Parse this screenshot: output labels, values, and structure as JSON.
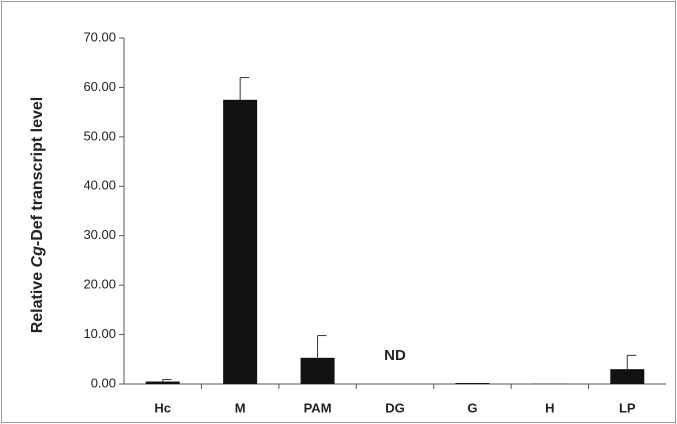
{
  "chart_data": {
    "type": "bar",
    "ylabel": [
      "Relative ",
      "Cg",
      "-Def transcript level"
    ],
    "categories": [
      "Hc",
      "M",
      "PAM",
      "DG",
      "G",
      "H",
      "LP"
    ],
    "values": [
      0.5,
      57.5,
      5.3,
      null,
      0.2,
      0.05,
      3.0
    ],
    "errors": [
      0.4,
      4.5,
      4.5,
      null,
      0,
      0,
      2.8
    ],
    "color": "#111111",
    "annotations": [
      {
        "text": "ND",
        "category": "DG"
      }
    ],
    "ylim": [
      0,
      70
    ],
    "yticks": [
      {
        "value": 0,
        "label": "0.00"
      },
      {
        "value": 10,
        "label": "10.00"
      },
      {
        "value": 20,
        "label": "20.00"
      },
      {
        "value": 30,
        "label": "30.00"
      },
      {
        "value": 40,
        "label": "40.00"
      },
      {
        "value": 50,
        "label": "50.00"
      },
      {
        "value": 60,
        "label": "60.00"
      },
      {
        "value": 70,
        "label": "70.00"
      }
    ],
    "grid": false
  }
}
